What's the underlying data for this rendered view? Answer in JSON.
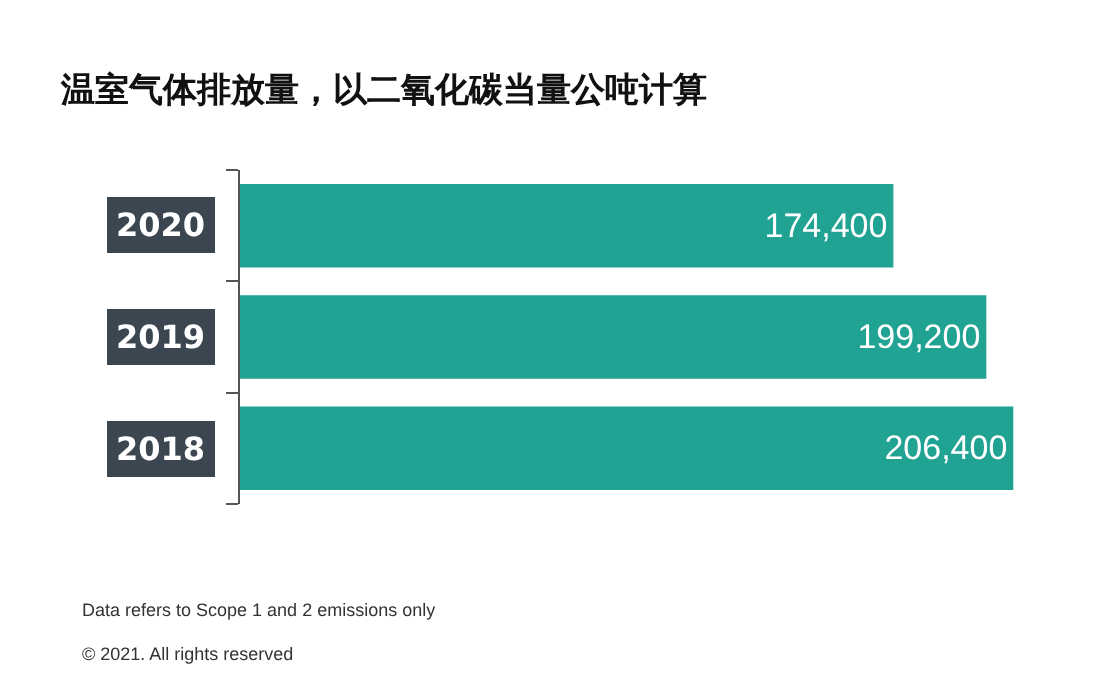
{
  "chart_data": {
    "type": "bar",
    "orientation": "horizontal",
    "title": "温室气体排放量，以二氧化碳当量公吨计算",
    "categories": [
      "2020",
      "2019",
      "2018"
    ],
    "values": [
      174400,
      199200,
      206400
    ],
    "color": "#21a394",
    "value_labels": [
      "174,400",
      "199,200",
      "206,400"
    ],
    "annotations": [
      "Data refers to Scope 1 and 2 emissions only",
      "© 2021. All rights reserved"
    ]
  }
}
